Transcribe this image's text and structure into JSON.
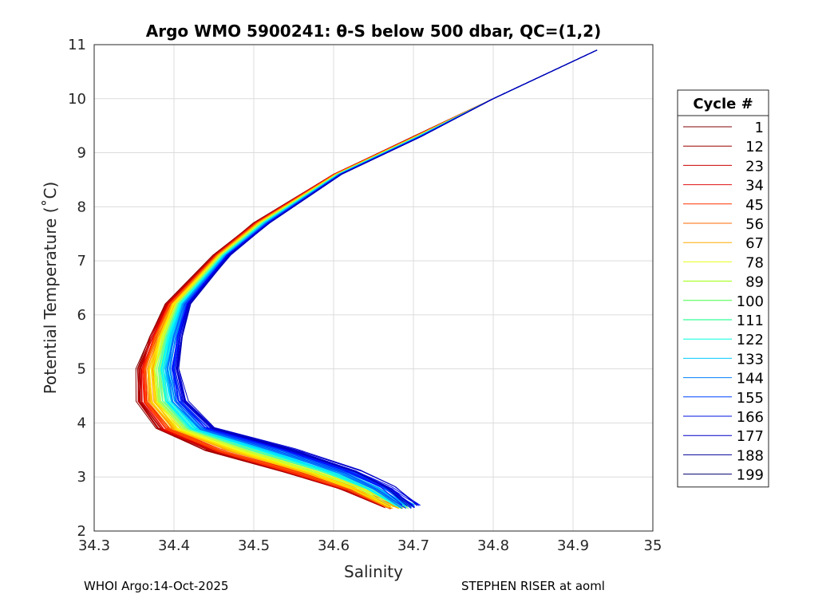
{
  "chart_data": {
    "type": "line",
    "title": "Argo WMO 5900241: θ-S below 500 dbar,  QC=(1,2)",
    "xlabel": "Salinity",
    "ylabel": "Potential Temperature (˚C)",
    "xlim": [
      34.3,
      35.0
    ],
    "ylim": [
      2,
      11
    ],
    "xticks": [
      "34.3",
      "34.4",
      "34.5",
      "34.6",
      "34.7",
      "34.8",
      "34.9",
      "35"
    ],
    "yticks": [
      "2",
      "3",
      "4",
      "5",
      "6",
      "7",
      "8",
      "9",
      "10",
      "11"
    ],
    "grid": true,
    "legend": {
      "title": "Cycle #",
      "placement": "right-outside",
      "entries": [
        {
          "label": "1",
          "color": "#800000"
        },
        {
          "label": "12",
          "color": "#990000"
        },
        {
          "label": "23",
          "color": "#cc0000"
        },
        {
          "label": "34",
          "color": "#e01010"
        },
        {
          "label": "45",
          "color": "#ff3000"
        },
        {
          "label": "56",
          "color": "#ff6a00"
        },
        {
          "label": "67",
          "color": "#ffaa00"
        },
        {
          "label": "78",
          "color": "#e6ff1a"
        },
        {
          "label": "89",
          "color": "#99ff00"
        },
        {
          "label": "100",
          "color": "#40ff40"
        },
        {
          "label": "111",
          "color": "#00ff80"
        },
        {
          "label": "122",
          "color": "#00ffdd"
        },
        {
          "label": "133",
          "color": "#00ccff"
        },
        {
          "label": "144",
          "color": "#0080ff"
        },
        {
          "label": "155",
          "color": "#0040ff"
        },
        {
          "label": "166",
          "color": "#0010e0"
        },
        {
          "label": "177",
          "color": "#0000c8"
        },
        {
          "label": "188",
          "color": "#000099"
        },
        {
          "label": "199",
          "color": "#000070"
        }
      ]
    },
    "profiles": {
      "theta": [
        10.9,
        10.0,
        9.3,
        8.6,
        7.7,
        7.1,
        6.2,
        5.6,
        5.0,
        4.4,
        3.9,
        3.5,
        3.1,
        2.8,
        2.45
      ],
      "salinity_early": [
        34.93,
        34.8,
        34.7,
        34.6,
        34.5,
        34.45,
        34.39,
        34.37,
        34.355,
        34.355,
        34.38,
        34.44,
        34.54,
        34.61,
        34.67
      ],
      "salinity_late": [
        34.93,
        34.8,
        34.71,
        34.61,
        34.52,
        34.47,
        34.42,
        34.41,
        34.405,
        34.415,
        34.45,
        34.55,
        34.63,
        34.67,
        34.7
      ],
      "num_cycles": 199
    }
  },
  "footer": {
    "left": "WHOI Argo:14-Oct-2025",
    "right": "STEPHEN RISER at aoml"
  }
}
